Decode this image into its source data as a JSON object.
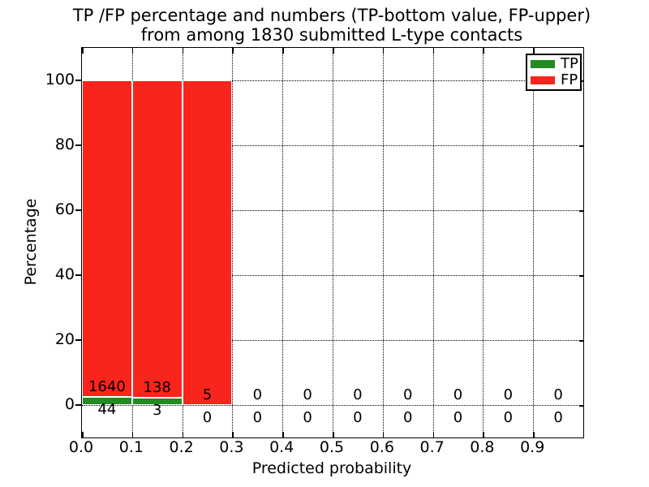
{
  "title": {
    "line1": "TP /FP percentage and numbers (TP-bottom value, FP-upper)",
    "line2": "from among 1830 submitted L-type contacts"
  },
  "axes": {
    "xlabel": "Predicted probability",
    "ylabel": "Percentage",
    "x_tick_labels": [
      "0.0",
      "0.1",
      "0.2",
      "0.3",
      "0.4",
      "0.5",
      "0.6",
      "0.7",
      "0.8",
      "0.9"
    ],
    "x_tick_values": [
      0.0,
      0.1,
      0.2,
      0.3,
      0.4,
      0.5,
      0.6,
      0.7,
      0.8,
      0.9
    ],
    "y_tick_labels": [
      "0",
      "20",
      "40",
      "60",
      "80",
      "100"
    ],
    "y_tick_values": [
      0,
      20,
      40,
      60,
      80,
      100
    ],
    "grid": "dotted"
  },
  "legend": {
    "items": [
      {
        "label": "TP",
        "color": "#228B22"
      },
      {
        "label": "FP",
        "color": "#F9241C"
      }
    ]
  },
  "chart_data": {
    "type": "bar",
    "stacked": true,
    "title": "TP /FP percentage and numbers (TP-bottom value, FP-upper) from among 1830 submitted L-type contacts",
    "xlabel": "Predicted probability",
    "ylabel": "Percentage",
    "xlim": [
      0.0,
      1.0
    ],
    "ylim": [
      -10,
      110
    ],
    "grid": true,
    "legend_position": "upper right",
    "total_contacts": 1830,
    "bin_width": 0.1,
    "bin_starts": [
      0.0,
      0.1,
      0.2,
      0.3,
      0.4,
      0.5,
      0.6,
      0.7,
      0.8,
      0.9
    ],
    "series": [
      {
        "name": "TP",
        "color": "#228B22",
        "counts": [
          44,
          3,
          0,
          0,
          0,
          0,
          0,
          0,
          0,
          0
        ],
        "percent": [
          2.61,
          2.13,
          0,
          0,
          0,
          0,
          0,
          0,
          0,
          0
        ]
      },
      {
        "name": "FP",
        "color": "#F9241C",
        "counts": [
          1640,
          138,
          5,
          0,
          0,
          0,
          0,
          0,
          0,
          0
        ],
        "percent": [
          97.39,
          97.87,
          100,
          0,
          0,
          0,
          0,
          0,
          0,
          0
        ]
      }
    ]
  }
}
